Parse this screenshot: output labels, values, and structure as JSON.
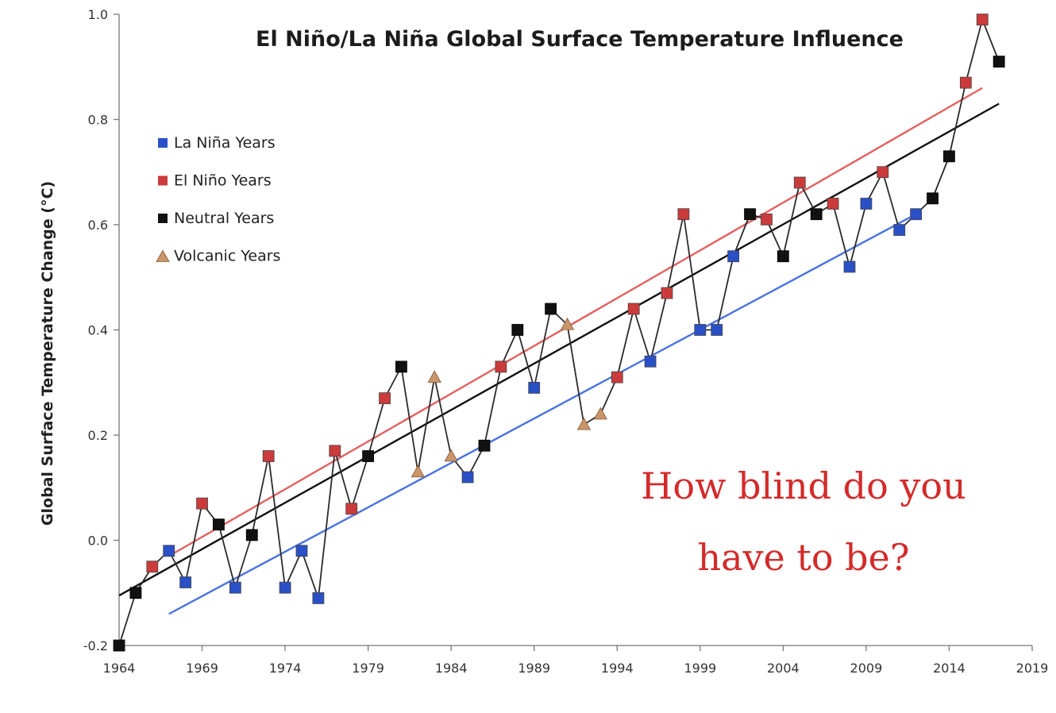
{
  "chart_data": {
    "type": "line",
    "title": "El Niño/La Niña Global Surface Temperature Influence",
    "xlabel": "",
    "ylabel": "Global Surface Temperature Change (°C)",
    "xlim": [
      1964,
      2019
    ],
    "ylim": [
      -0.2,
      1.0
    ],
    "x_ticks": [
      1964,
      1969,
      1974,
      1979,
      1984,
      1989,
      1994,
      1999,
      2004,
      2009,
      2014,
      2019
    ],
    "y_ticks": [
      -0.2,
      0.0,
      0.2,
      0.4,
      0.6,
      0.8,
      1.0
    ],
    "y_tick_labels": [
      "-0.2",
      "0.0",
      "0.2",
      "0.4",
      "0.6",
      "0.8",
      "1.0"
    ],
    "legend_position": "top-left",
    "legend": [
      {
        "label": "La Niña Years",
        "key": "la_nina",
        "marker": "square",
        "color": "#2a50c8"
      },
      {
        "label": "El Niño Years",
        "key": "el_nino",
        "marker": "square",
        "color": "#cc3b3b"
      },
      {
        "label": "Neutral Years",
        "key": "neutral",
        "marker": "square",
        "color": "#111111"
      },
      {
        "label": "Volcanic Years",
        "key": "volcanic",
        "marker": "triangle",
        "color": "#c9956a"
      }
    ],
    "series": [
      {
        "key": "annual",
        "points": [
          {
            "x": 1964,
            "y": -0.2,
            "type": "neutral"
          },
          {
            "x": 1965,
            "y": -0.1,
            "type": "neutral"
          },
          {
            "x": 1966,
            "y": -0.05,
            "type": "el_nino"
          },
          {
            "x": 1967,
            "y": -0.02,
            "type": "la_nina"
          },
          {
            "x": 1968,
            "y": -0.08,
            "type": "la_nina"
          },
          {
            "x": 1969,
            "y": 0.07,
            "type": "el_nino"
          },
          {
            "x": 1970,
            "y": 0.03,
            "type": "neutral"
          },
          {
            "x": 1971,
            "y": -0.09,
            "type": "la_nina"
          },
          {
            "x": 1972,
            "y": 0.01,
            "type": "neutral"
          },
          {
            "x": 1973,
            "y": 0.16,
            "type": "el_nino"
          },
          {
            "x": 1974,
            "y": -0.09,
            "type": "la_nina"
          },
          {
            "x": 1975,
            "y": -0.02,
            "type": "la_nina"
          },
          {
            "x": 1976,
            "y": -0.11,
            "type": "la_nina"
          },
          {
            "x": 1977,
            "y": 0.17,
            "type": "el_nino"
          },
          {
            "x": 1978,
            "y": 0.06,
            "type": "el_nino"
          },
          {
            "x": 1979,
            "y": 0.16,
            "type": "neutral"
          },
          {
            "x": 1980,
            "y": 0.27,
            "type": "el_nino"
          },
          {
            "x": 1981,
            "y": 0.33,
            "type": "neutral"
          },
          {
            "x": 1982,
            "y": 0.13,
            "type": "volcanic"
          },
          {
            "x": 1983,
            "y": 0.31,
            "type": "volcanic"
          },
          {
            "x": 1984,
            "y": 0.16,
            "type": "volcanic"
          },
          {
            "x": 1985,
            "y": 0.12,
            "type": "la_nina"
          },
          {
            "x": 1986,
            "y": 0.18,
            "type": "neutral"
          },
          {
            "x": 1987,
            "y": 0.33,
            "type": "el_nino"
          },
          {
            "x": 1988,
            "y": 0.4,
            "type": "neutral"
          },
          {
            "x": 1989,
            "y": 0.29,
            "type": "la_nina"
          },
          {
            "x": 1990,
            "y": 0.44,
            "type": "neutral"
          },
          {
            "x": 1991,
            "y": 0.41,
            "type": "volcanic"
          },
          {
            "x": 1992,
            "y": 0.22,
            "type": "volcanic"
          },
          {
            "x": 1993,
            "y": 0.24,
            "type": "volcanic"
          },
          {
            "x": 1994,
            "y": 0.31,
            "type": "el_nino"
          },
          {
            "x": 1995,
            "y": 0.44,
            "type": "el_nino"
          },
          {
            "x": 1996,
            "y": 0.34,
            "type": "la_nina"
          },
          {
            "x": 1997,
            "y": 0.47,
            "type": "el_nino"
          },
          {
            "x": 1998,
            "y": 0.62,
            "type": "el_nino"
          },
          {
            "x": 1999,
            "y": 0.4,
            "type": "la_nina"
          },
          {
            "x": 2000,
            "y": 0.4,
            "type": "la_nina"
          },
          {
            "x": 2001,
            "y": 0.54,
            "type": "la_nina"
          },
          {
            "x": 2002,
            "y": 0.62,
            "type": "neutral"
          },
          {
            "x": 2003,
            "y": 0.61,
            "type": "el_nino"
          },
          {
            "x": 2004,
            "y": 0.54,
            "type": "neutral"
          },
          {
            "x": 2005,
            "y": 0.68,
            "type": "el_nino"
          },
          {
            "x": 2006,
            "y": 0.62,
            "type": "neutral"
          },
          {
            "x": 2007,
            "y": 0.64,
            "type": "el_nino"
          },
          {
            "x": 2008,
            "y": 0.52,
            "type": "la_nina"
          },
          {
            "x": 2009,
            "y": 0.64,
            "type": "la_nina"
          },
          {
            "x": 2010,
            "y": 0.7,
            "type": "el_nino"
          },
          {
            "x": 2011,
            "y": 0.59,
            "type": "la_nina"
          },
          {
            "x": 2012,
            "y": 0.62,
            "type": "la_nina"
          },
          {
            "x": 2013,
            "y": 0.65,
            "type": "neutral"
          },
          {
            "x": 2014,
            "y": 0.73,
            "type": "neutral"
          },
          {
            "x": 2015,
            "y": 0.87,
            "type": "el_nino"
          },
          {
            "x": 2016,
            "y": 0.99,
            "type": "el_nino"
          },
          {
            "x": 2017,
            "y": 0.91,
            "type": "neutral"
          }
        ]
      }
    ],
    "trend_lines": [
      {
        "key": "el_nino_trend",
        "color": "#e46060",
        "from": {
          "x": 1967,
          "y": -0.03
        },
        "to": {
          "x": 2016,
          "y": 0.86
        }
      },
      {
        "key": "neutral_trend",
        "color": "#111111",
        "from": {
          "x": 1964,
          "y": -0.105
        },
        "to": {
          "x": 2017,
          "y": 0.83
        }
      },
      {
        "key": "la_nina_trend",
        "color": "#4a72e0",
        "from": {
          "x": 1967,
          "y": -0.14
        },
        "to": {
          "x": 2012,
          "y": 0.62
        }
      }
    ],
    "annotation": {
      "lines": [
        "How blind do you",
        "have to be?"
      ],
      "color": "#d42a2a"
    }
  }
}
